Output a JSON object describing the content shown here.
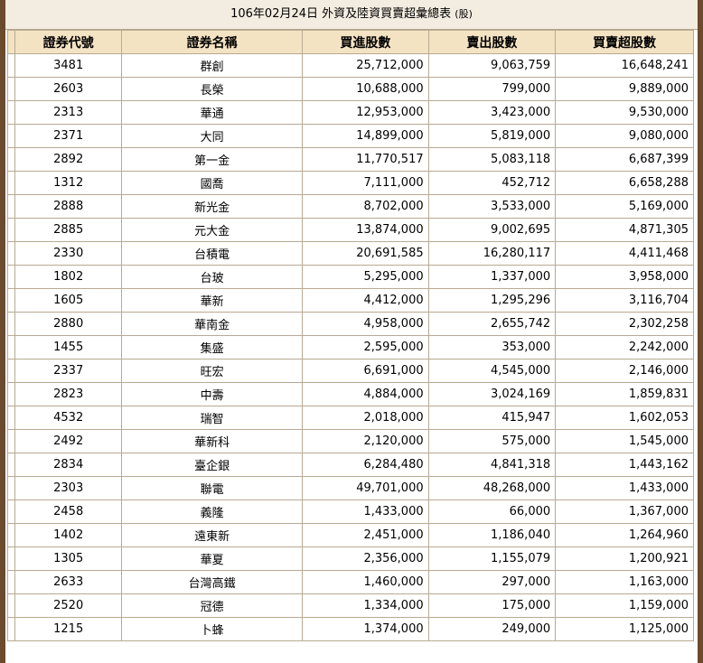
{
  "caption": {
    "title": "106年02月24日 外資及陸資買賣超彙總表",
    "unit": "(股)"
  },
  "columns": [
    "證券代號",
    "證券名稱",
    "買進股數",
    "賣出股數",
    "買賣超股數"
  ],
  "rows": [
    {
      "code": "3481",
      "name": "群創",
      "buy": "25,712,000",
      "sell": "9,063,759",
      "net": "16,648,241"
    },
    {
      "code": "2603",
      "name": "長榮",
      "buy": "10,688,000",
      "sell": "799,000",
      "net": "9,889,000"
    },
    {
      "code": "2313",
      "name": "華通",
      "buy": "12,953,000",
      "sell": "3,423,000",
      "net": "9,530,000"
    },
    {
      "code": "2371",
      "name": "大同",
      "buy": "14,899,000",
      "sell": "5,819,000",
      "net": "9,080,000"
    },
    {
      "code": "2892",
      "name": "第一金",
      "buy": "11,770,517",
      "sell": "5,083,118",
      "net": "6,687,399"
    },
    {
      "code": "1312",
      "name": "國喬",
      "buy": "7,111,000",
      "sell": "452,712",
      "net": "6,658,288"
    },
    {
      "code": "2888",
      "name": "新光金",
      "buy": "8,702,000",
      "sell": "3,533,000",
      "net": "5,169,000"
    },
    {
      "code": "2885",
      "name": "元大金",
      "buy": "13,874,000",
      "sell": "9,002,695",
      "net": "4,871,305"
    },
    {
      "code": "2330",
      "name": "台積電",
      "buy": "20,691,585",
      "sell": "16,280,117",
      "net": "4,411,468"
    },
    {
      "code": "1802",
      "name": "台玻",
      "buy": "5,295,000",
      "sell": "1,337,000",
      "net": "3,958,000"
    },
    {
      "code": "1605",
      "name": "華新",
      "buy": "4,412,000",
      "sell": "1,295,296",
      "net": "3,116,704"
    },
    {
      "code": "2880",
      "name": "華南金",
      "buy": "4,958,000",
      "sell": "2,655,742",
      "net": "2,302,258"
    },
    {
      "code": "1455",
      "name": "集盛",
      "buy": "2,595,000",
      "sell": "353,000",
      "net": "2,242,000"
    },
    {
      "code": "2337",
      "name": "旺宏",
      "buy": "6,691,000",
      "sell": "4,545,000",
      "net": "2,146,000"
    },
    {
      "code": "2823",
      "name": "中壽",
      "buy": "4,884,000",
      "sell": "3,024,169",
      "net": "1,859,831"
    },
    {
      "code": "4532",
      "name": "瑞智",
      "buy": "2,018,000",
      "sell": "415,947",
      "net": "1,602,053"
    },
    {
      "code": "2492",
      "name": "華新科",
      "buy": "2,120,000",
      "sell": "575,000",
      "net": "1,545,000"
    },
    {
      "code": "2834",
      "name": "臺企銀",
      "buy": "6,284,480",
      "sell": "4,841,318",
      "net": "1,443,162"
    },
    {
      "code": "2303",
      "name": "聯電",
      "buy": "49,701,000",
      "sell": "48,268,000",
      "net": "1,433,000"
    },
    {
      "code": "2458",
      "name": "義隆",
      "buy": "1,433,000",
      "sell": "66,000",
      "net": "1,367,000"
    },
    {
      "code": "1402",
      "name": "遠東新",
      "buy": "2,451,000",
      "sell": "1,186,040",
      "net": "1,264,960"
    },
    {
      "code": "1305",
      "name": "華夏",
      "buy": "2,356,000",
      "sell": "1,155,079",
      "net": "1,200,921"
    },
    {
      "code": "2633",
      "name": "台灣高鐵",
      "buy": "1,460,000",
      "sell": "297,000",
      "net": "1,163,000"
    },
    {
      "code": "2520",
      "name": "冠德",
      "buy": "1,334,000",
      "sell": "175,000",
      "net": "1,159,000"
    },
    {
      "code": "1215",
      "name": "卜蜂",
      "buy": "1,374,000",
      "sell": "249,000",
      "net": "1,125,000"
    }
  ]
}
